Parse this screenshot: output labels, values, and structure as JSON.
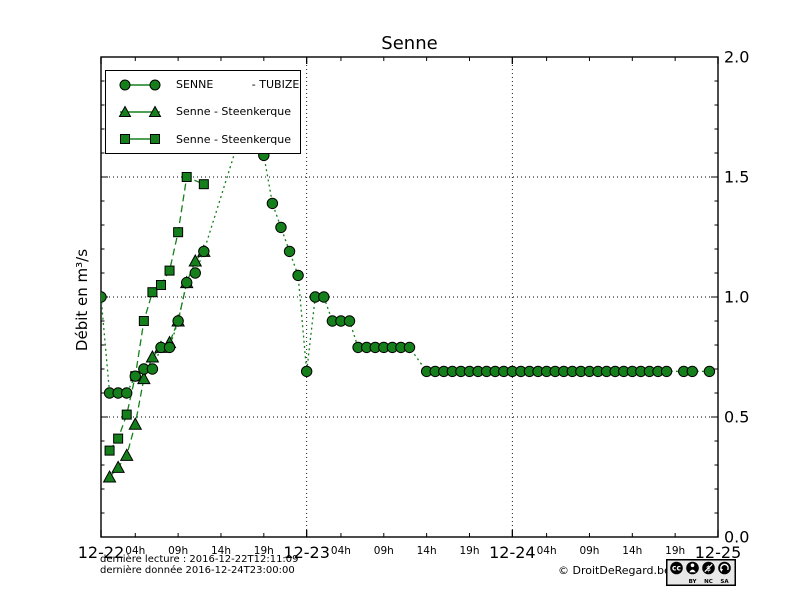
{
  "title": "Senne",
  "ylabel": "Débit en m³/s",
  "footer": {
    "line1": "dernière lecture : 2016-12-22T12:11:09",
    "line2": "dernière donnée  2016-12-24T23:00:00"
  },
  "copyright": "© DroitDeRegard.be",
  "cc_badge": {
    "labels": [
      "BY",
      "NC",
      "SA"
    ],
    "icons": [
      "cc-icon",
      "attribution-person-icon",
      "non-commercial-icon",
      "share-alike-icon"
    ]
  },
  "colors": {
    "series_green": "#15801b",
    "marker_edge": "#000000",
    "grid": "#000000",
    "background": "#ffffff"
  },
  "legend": {
    "items": [
      {
        "label": "SENNE           - TUBIZE",
        "marker": "circle"
      },
      {
        "label": "Senne - Steenkerque",
        "marker": "triangle"
      },
      {
        "label": "Senne - Steenkerque",
        "marker": "square"
      }
    ]
  },
  "chart_data": {
    "type": "line",
    "title": "Senne",
    "ylabel": "Débit en m³/s",
    "ylim": [
      0.0,
      2.0
    ],
    "grid": true,
    "legend_position": "upper left",
    "x_axis": {
      "start": "2016-12-22 00:00",
      "end": "2016-12-25 00:00",
      "unit": "hours since 2016-12-22 00:00",
      "range_hours": [
        0,
        72
      ],
      "date_ticks": [
        {
          "t": 0,
          "label": "12-22"
        },
        {
          "t": 24,
          "label": "12-23"
        },
        {
          "t": 48,
          "label": "12-24"
        },
        {
          "t": 72,
          "label": "12-25"
        }
      ],
      "hour_ticks": [
        {
          "t": 4,
          "label": "04h"
        },
        {
          "t": 9,
          "label": "09h"
        },
        {
          "t": 14,
          "label": "14h"
        },
        {
          "t": 19,
          "label": "19h"
        },
        {
          "t": 28,
          "label": "04h"
        },
        {
          "t": 33,
          "label": "09h"
        },
        {
          "t": 38,
          "label": "14h"
        },
        {
          "t": 43,
          "label": "19h"
        },
        {
          "t": 52,
          "label": "04h"
        },
        {
          "t": 57,
          "label": "09h"
        },
        {
          "t": 62,
          "label": "14h"
        },
        {
          "t": 67,
          "label": "19h"
        }
      ]
    },
    "y_axis": {
      "tick_values": [
        0.0,
        0.5,
        1.0,
        1.5,
        2.0
      ],
      "tick_labels": [
        "0.0",
        "0.5",
        "1.0",
        "1.5",
        "2.0"
      ],
      "minor_tick_step": 0.1,
      "labels_side": "right"
    },
    "series": [
      {
        "name": "SENNE - TUBIZE",
        "marker": "circle",
        "linestyle": "dotted",
        "color": "#15801b",
        "points": [
          [
            0,
            1.0
          ],
          [
            1,
            0.6
          ],
          [
            2,
            0.6
          ],
          [
            3,
            0.6
          ],
          [
            4,
            0.67
          ],
          [
            5,
            0.7
          ],
          [
            6,
            0.7
          ],
          [
            7,
            0.79
          ],
          [
            8,
            0.79
          ],
          [
            9,
            0.9
          ],
          [
            10,
            1.06
          ],
          [
            11,
            1.1
          ],
          [
            12,
            1.19
          ],
          [
            17,
            1.76
          ],
          [
            19,
            1.59
          ],
          [
            20,
            1.39
          ],
          [
            21,
            1.29
          ],
          [
            22,
            1.19
          ],
          [
            23,
            1.09
          ],
          [
            24,
            0.69
          ],
          [
            25,
            1.0
          ],
          [
            26,
            1.0
          ],
          [
            27,
            0.9
          ],
          [
            28,
            0.9
          ],
          [
            29,
            0.9
          ],
          [
            30,
            0.79
          ],
          [
            31,
            0.79
          ],
          [
            32,
            0.79
          ],
          [
            33,
            0.79
          ],
          [
            34,
            0.79
          ],
          [
            35,
            0.79
          ],
          [
            36,
            0.79
          ],
          [
            38,
            0.69
          ],
          [
            39,
            0.69
          ],
          [
            40,
            0.69
          ],
          [
            41,
            0.69
          ],
          [
            42,
            0.69
          ],
          [
            43,
            0.69
          ],
          [
            44,
            0.69
          ],
          [
            45,
            0.69
          ],
          [
            46,
            0.69
          ],
          [
            47,
            0.69
          ],
          [
            48,
            0.69
          ],
          [
            49,
            0.69
          ],
          [
            50,
            0.69
          ],
          [
            51,
            0.69
          ],
          [
            52,
            0.69
          ],
          [
            53,
            0.69
          ],
          [
            54,
            0.69
          ],
          [
            55,
            0.69
          ],
          [
            56,
            0.69
          ],
          [
            57,
            0.69
          ],
          [
            58,
            0.69
          ],
          [
            59,
            0.69
          ],
          [
            60,
            0.69
          ],
          [
            61,
            0.69
          ],
          [
            62,
            0.69
          ],
          [
            63,
            0.69
          ],
          [
            64,
            0.69
          ],
          [
            65,
            0.69
          ],
          [
            66,
            0.69
          ],
          [
            68,
            0.69
          ],
          [
            69,
            0.69
          ],
          [
            71,
            0.69
          ]
        ]
      },
      {
        "name": "Senne - Steenkerque",
        "marker": "triangle",
        "linestyle": "dashed",
        "color": "#15801b",
        "points": [
          [
            1,
            0.25
          ],
          [
            2,
            0.29
          ],
          [
            3,
            0.34
          ],
          [
            4,
            0.47
          ],
          [
            5,
            0.66
          ],
          [
            6,
            0.75
          ],
          [
            7,
            0.79
          ],
          [
            8,
            0.81
          ],
          [
            9,
            0.9
          ],
          [
            10,
            1.06
          ],
          [
            11,
            1.15
          ],
          [
            12,
            1.19
          ]
        ]
      },
      {
        "name": "Senne - Steenkerque",
        "marker": "square",
        "linestyle": "dashed",
        "color": "#15801b",
        "points": [
          [
            1,
            0.36
          ],
          [
            2,
            0.41
          ],
          [
            3,
            0.51
          ],
          [
            4,
            0.67
          ],
          [
            5,
            0.9
          ],
          [
            6,
            1.02
          ],
          [
            7,
            1.05
          ],
          [
            8,
            1.11
          ],
          [
            9,
            1.27
          ],
          [
            10,
            1.5
          ],
          [
            12,
            1.47
          ]
        ]
      }
    ]
  }
}
